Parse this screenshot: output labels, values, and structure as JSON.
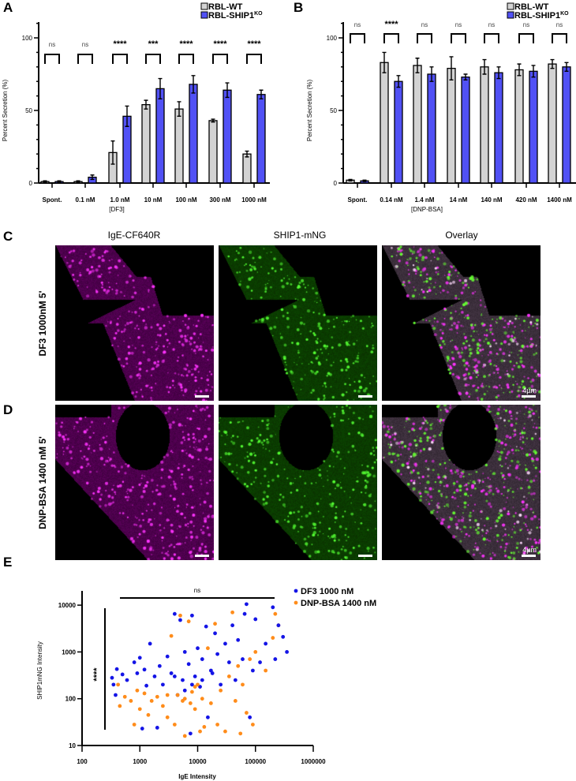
{
  "panels": {
    "a": "A",
    "b": "B",
    "c": "C",
    "d": "D",
    "e": "E"
  },
  "legend": {
    "wt": "RBL-WT",
    "ko_base": "RBL-SHIP1",
    "ko_sup": "KO"
  },
  "colors": {
    "wt": "#d3d3d3",
    "ko": "#5151f5",
    "blue": "#1414e6",
    "orange": "#ff8c1a",
    "magenta": "#ff1aff",
    "green": "#33dd22"
  },
  "microscopy": {
    "columns": [
      "IgE-CF640R",
      "SHIP1-mNG",
      "Overlay"
    ],
    "rows": [
      "DF3 1000nM 5'",
      "DNP-BSA 1400 nM 5'"
    ],
    "scale_bar": "4µm"
  },
  "chart_data": [
    {
      "type": "bar",
      "panel": "A",
      "title": "",
      "xlabel": "[DF3]",
      "ylabel": "Percent Secretion (%)",
      "ylim": [
        0,
        110
      ],
      "yticks": [
        0,
        50,
        100
      ],
      "categories": [
        "Spont.",
        "0.1 nM",
        "1.0 nM",
        "10 nM",
        "100 nM",
        "300 nM",
        "1000 nM"
      ],
      "series": [
        {
          "name": "RBL-WT",
          "values": [
            1,
            1,
            21,
            54,
            51,
            43,
            20
          ],
          "errors": [
            0.5,
            0.5,
            8,
            3,
            5,
            1,
            2
          ]
        },
        {
          "name": "RBL-SHIP1KO",
          "values": [
            1,
            4,
            46,
            65,
            68,
            64,
            61
          ],
          "errors": [
            0.5,
            1.5,
            7,
            7,
            6,
            5,
            3
          ]
        }
      ],
      "significance": [
        "ns",
        "ns",
        "****",
        "***",
        "****",
        "****",
        "****"
      ],
      "legend": "top-right"
    },
    {
      "type": "bar",
      "panel": "B",
      "title": "",
      "xlabel": "[DNP-BSA]",
      "ylabel": "Percent Secretion (%)",
      "ylim": [
        0,
        110
      ],
      "yticks": [
        0,
        50,
        100
      ],
      "categories": [
        "Spont.",
        "0.14 nM",
        "1.4 nM",
        "14 nM",
        "140 nM",
        "420 nM",
        "1400 nM"
      ],
      "series": [
        {
          "name": "RBL-WT",
          "values": [
            2,
            83,
            81,
            79,
            80,
            78,
            82
          ],
          "errors": [
            0.5,
            7,
            5,
            8,
            5,
            4,
            3
          ]
        },
        {
          "name": "RBL-SHIP1KO",
          "values": [
            1.5,
            70,
            75,
            73,
            76,
            77,
            80
          ],
          "errors": [
            0.5,
            4,
            5,
            2,
            4,
            4,
            3
          ]
        }
      ],
      "significance": [
        "ns",
        "****",
        "ns",
        "ns",
        "ns",
        "ns",
        "ns"
      ],
      "legend": "top-right"
    },
    {
      "type": "scatter",
      "panel": "E",
      "xlabel": "IgE Intensity",
      "ylabel": "SHIP1mNG Intensity",
      "xscale": "log",
      "yscale": "log",
      "xlim": [
        100,
        1000000
      ],
      "ylim": [
        10,
        20000
      ],
      "xticks": [
        "100",
        "1000",
        "10000",
        "100000",
        "1000000"
      ],
      "yticks": [
        "10",
        "100",
        "1000",
        "10000"
      ],
      "sig_x": "ns",
      "sig_y": "****",
      "legend": "top-right",
      "series": [
        {
          "name": "DF3 1000 nM",
          "points": [
            [
              330,
              280
            ],
            [
              350,
              200
            ],
            [
              400,
              430
            ],
            [
              380,
              120
            ],
            [
              500,
              330
            ],
            [
              600,
              250
            ],
            [
              800,
              600
            ],
            [
              900,
              350
            ],
            [
              1000,
              750
            ],
            [
              1100,
              23
            ],
            [
              1200,
              420
            ],
            [
              1300,
              190
            ],
            [
              1500,
              1500
            ],
            [
              1800,
              300
            ],
            [
              2000,
              24
            ],
            [
              2200,
              500
            ],
            [
              2500,
              200
            ],
            [
              3000,
              800
            ],
            [
              3500,
              350
            ],
            [
              4000,
              6500
            ],
            [
              4500,
              120
            ],
            [
              5000,
              4800
            ],
            [
              5500,
              250
            ],
            [
              6000,
              1000
            ],
            [
              7000,
              550
            ],
            [
              7500,
              18
            ],
            [
              8000,
              6000
            ],
            [
              9000,
              300
            ],
            [
              10000,
              1200
            ],
            [
              11000,
              180
            ],
            [
              12000,
              700
            ],
            [
              14000,
              3500
            ],
            [
              15000,
              40
            ],
            [
              17000,
              400
            ],
            [
              20000,
              2500
            ],
            [
              22000,
              900
            ],
            [
              25000,
              200
            ],
            [
              30000,
              1500
            ],
            [
              35000,
              600
            ],
            [
              40000,
              3700
            ],
            [
              45000,
              250
            ],
            [
              50000,
              1800
            ],
            [
              60000,
              700
            ],
            [
              65000,
              6500
            ],
            [
              70000,
              10500
            ],
            [
              80000,
              40
            ],
            [
              90000,
              400
            ],
            [
              100000,
              5000
            ],
            [
              120000,
              600
            ],
            [
              150000,
              1500
            ],
            [
              200000,
              9000
            ],
            [
              220000,
              700
            ],
            [
              250000,
              3700
            ],
            [
              300000,
              2100
            ],
            [
              350000,
              1000
            ],
            [
              8000,
              200
            ],
            [
              6000,
              150
            ],
            [
              4000,
              300
            ],
            [
              12000,
              250
            ],
            [
              18000,
              350
            ]
          ]
        },
        {
          "name": "DNP-BSA 1400 nM",
          "points": [
            [
              420,
              200
            ],
            [
              450,
              70
            ],
            [
              550,
              110
            ],
            [
              700,
              90
            ],
            [
              800,
              28
            ],
            [
              900,
              150
            ],
            [
              1000,
              60
            ],
            [
              1200,
              130
            ],
            [
              1400,
              45
            ],
            [
              1600,
              90
            ],
            [
              2000,
              110
            ],
            [
              2500,
              70
            ],
            [
              3000,
              40
            ],
            [
              3500,
              2200
            ],
            [
              4000,
              28
            ],
            [
              4500,
              120
            ],
            [
              5000,
              6000
            ],
            [
              5500,
              90
            ],
            [
              6000,
              16
            ],
            [
              7000,
              4500
            ],
            [
              7500,
              80
            ],
            [
              8000,
              140
            ],
            [
              9000,
              60
            ],
            [
              10000,
              200
            ],
            [
              11000,
              20
            ],
            [
              12000,
              100
            ],
            [
              13000,
              25
            ],
            [
              15000,
              1200
            ],
            [
              17000,
              80
            ],
            [
              20000,
              4000
            ],
            [
              22000,
              28
            ],
            [
              25000,
              150
            ],
            [
              30000,
              20
            ],
            [
              35000,
              300
            ],
            [
              40000,
              7000
            ],
            [
              45000,
              90
            ],
            [
              50000,
              500
            ],
            [
              55000,
              18
            ],
            [
              60000,
              200
            ],
            [
              70000,
              50
            ],
            [
              80000,
              700
            ],
            [
              90000,
              28
            ],
            [
              100000,
              1000
            ],
            [
              150000,
              400
            ],
            [
              220000,
              6500
            ],
            [
              250000,
              3700
            ],
            [
              200000,
              2000
            ],
            [
              3000,
              120
            ],
            [
              6000,
              100
            ],
            [
              9000,
              180
            ]
          ]
        }
      ]
    }
  ]
}
